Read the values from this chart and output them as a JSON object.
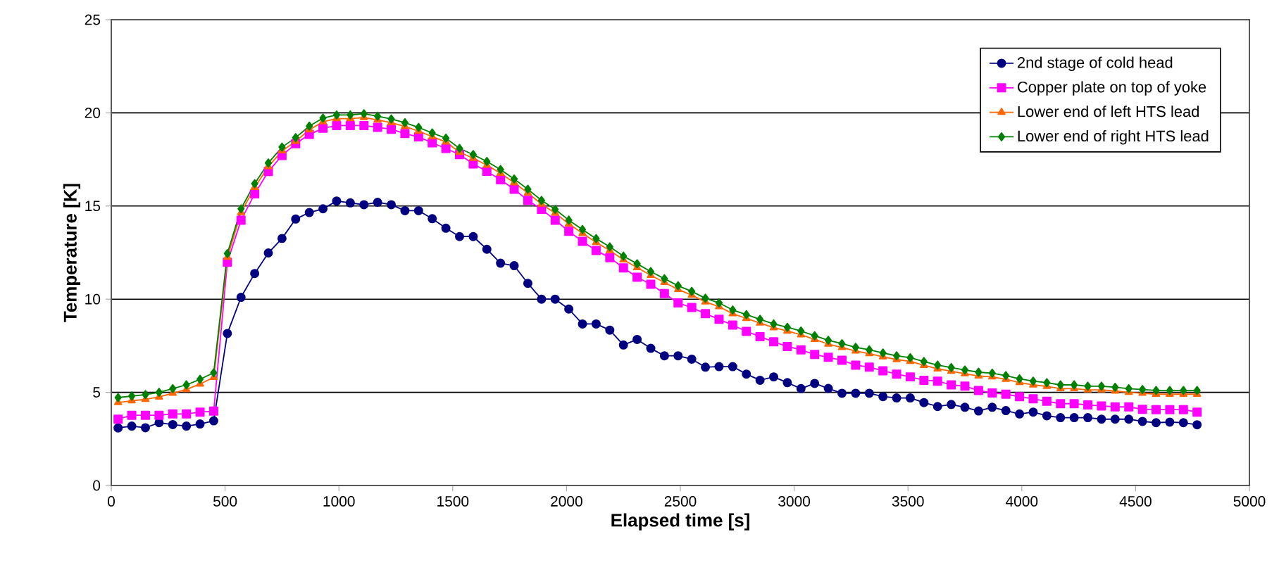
{
  "chart_data": {
    "type": "line",
    "xlabel": "Elapsed time [s]",
    "ylabel": "Temperature [K]",
    "x": [
      30,
      90,
      150,
      210,
      270,
      330,
      390,
      450,
      510,
      570,
      630,
      690,
      750,
      810,
      870,
      930,
      990,
      1050,
      1110,
      1170,
      1230,
      1290,
      1350,
      1410,
      1470,
      1530,
      1590,
      1650,
      1710,
      1770,
      1830,
      1890,
      1950,
      2010,
      2070,
      2130,
      2190,
      2250,
      2310,
      2370,
      2430,
      2490,
      2550,
      2610,
      2670,
      2730,
      2790,
      2850,
      2910,
      2970,
      3030,
      3090,
      3150,
      3210,
      3270,
      3330,
      3390,
      3450,
      3510,
      3570,
      3630,
      3690,
      3750,
      3810,
      3870,
      3930,
      3990,
      4050,
      4110,
      4170,
      4230,
      4290,
      4350,
      4410,
      4470,
      4530,
      4590,
      4650,
      4710,
      4770
    ],
    "xlim": [
      0,
      5000
    ],
    "xticks": [
      0,
      500,
      1000,
      1500,
      2000,
      2500,
      3000,
      3500,
      4000,
      4500,
      5000
    ],
    "ylim": [
      0,
      25
    ],
    "yticks": [
      0,
      5,
      10,
      15,
      20,
      25
    ],
    "grid": "y",
    "legend": "top right",
    "line_style": "solid",
    "series": [
      {
        "name": "2nd stage of cold head",
        "color": "#000080",
        "marker": "circle",
        "values": [
          3.09,
          3.19,
          3.1,
          3.37,
          3.27,
          3.19,
          3.3,
          3.47,
          8.16,
          10.1,
          11.38,
          12.48,
          13.26,
          14.3,
          14.65,
          14.85,
          15.27,
          15.17,
          15.07,
          15.2,
          15.07,
          14.75,
          14.75,
          14.32,
          13.81,
          13.36,
          13.36,
          12.68,
          11.93,
          11.8,
          10.85,
          10.0,
          10.0,
          9.47,
          8.67,
          8.67,
          8.34,
          7.54,
          7.84,
          7.36,
          6.96,
          6.96,
          6.78,
          6.35,
          6.38,
          6.38,
          5.98,
          5.65,
          5.83,
          5.52,
          5.2,
          5.48,
          5.21,
          4.95,
          4.95,
          4.95,
          4.77,
          4.7,
          4.7,
          4.45,
          4.24,
          4.35,
          4.2,
          4.0,
          4.2,
          4.02,
          3.84,
          3.94,
          3.74,
          3.64,
          3.64,
          3.64,
          3.56,
          3.56,
          3.56,
          3.44,
          3.37,
          3.4,
          3.37,
          3.26
        ]
      },
      {
        "name": "Copper plate on top of yoke",
        "color": "#ff00ff",
        "marker": "square",
        "values": [
          3.56,
          3.77,
          3.77,
          3.77,
          3.84,
          3.84,
          3.94,
          3.99,
          11.98,
          14.24,
          15.65,
          16.85,
          17.71,
          18.34,
          18.84,
          19.17,
          19.32,
          19.32,
          19.32,
          19.22,
          19.12,
          18.89,
          18.71,
          18.39,
          18.09,
          17.76,
          17.26,
          16.86,
          16.41,
          15.9,
          15.3,
          14.82,
          14.24,
          13.64,
          13.1,
          12.61,
          12.23,
          11.68,
          11.18,
          10.8,
          10.3,
          9.8,
          9.55,
          9.22,
          8.92,
          8.61,
          8.27,
          7.99,
          7.71,
          7.46,
          7.28,
          7.03,
          6.88,
          6.72,
          6.46,
          6.35,
          6.16,
          5.98,
          5.83,
          5.65,
          5.6,
          5.4,
          5.33,
          5.1,
          4.97,
          4.9,
          4.77,
          4.65,
          4.52,
          4.39,
          4.39,
          4.32,
          4.27,
          4.22,
          4.22,
          4.09,
          4.07,
          4.07,
          4.07,
          3.94
        ]
      },
      {
        "name": "Lower end of left HTS lead",
        "color": "#ff6600",
        "marker": "triangle",
        "values": [
          4.45,
          4.55,
          4.62,
          4.75,
          4.95,
          5.15,
          5.45,
          5.8,
          12.25,
          14.65,
          16.0,
          17.11,
          17.96,
          18.47,
          19.09,
          19.52,
          19.69,
          19.69,
          19.75,
          19.62,
          19.47,
          19.27,
          19.02,
          18.72,
          18.44,
          17.89,
          17.56,
          17.19,
          16.76,
          16.25,
          15.7,
          15.1,
          14.62,
          14.04,
          13.54,
          13.05,
          12.61,
          12.11,
          11.7,
          11.28,
          10.9,
          10.52,
          10.22,
          9.85,
          9.6,
          9.22,
          8.97,
          8.72,
          8.47,
          8.29,
          8.09,
          7.84,
          7.59,
          7.41,
          7.22,
          7.08,
          6.91,
          6.76,
          6.66,
          6.45,
          6.26,
          6.13,
          6.0,
          5.88,
          5.83,
          5.7,
          5.53,
          5.4,
          5.32,
          5.2,
          5.2,
          5.13,
          5.13,
          5.07,
          5.0,
          4.95,
          4.9,
          4.9,
          4.9,
          4.9
        ]
      },
      {
        "name": "Lower end of right HTS lead",
        "color": "#008000",
        "marker": "diamond",
        "values": [
          4.72,
          4.8,
          4.88,
          5.0,
          5.2,
          5.4,
          5.7,
          6.05,
          12.45,
          14.85,
          16.2,
          17.31,
          18.16,
          18.67,
          19.29,
          19.72,
          19.89,
          19.89,
          19.95,
          19.82,
          19.67,
          19.47,
          19.22,
          18.92,
          18.64,
          18.09,
          17.76,
          17.39,
          16.96,
          16.45,
          15.9,
          15.3,
          14.82,
          14.24,
          13.74,
          13.25,
          12.81,
          12.31,
          11.9,
          11.48,
          11.1,
          10.72,
          10.42,
          10.05,
          9.8,
          9.42,
          9.17,
          8.92,
          8.67,
          8.49,
          8.29,
          8.04,
          7.79,
          7.61,
          7.42,
          7.28,
          7.11,
          6.96,
          6.86,
          6.65,
          6.46,
          6.33,
          6.2,
          6.08,
          6.03,
          5.9,
          5.73,
          5.6,
          5.52,
          5.4,
          5.4,
          5.33,
          5.33,
          5.27,
          5.2,
          5.15,
          5.1,
          5.1,
          5.1,
          5.1
        ]
      }
    ]
  }
}
